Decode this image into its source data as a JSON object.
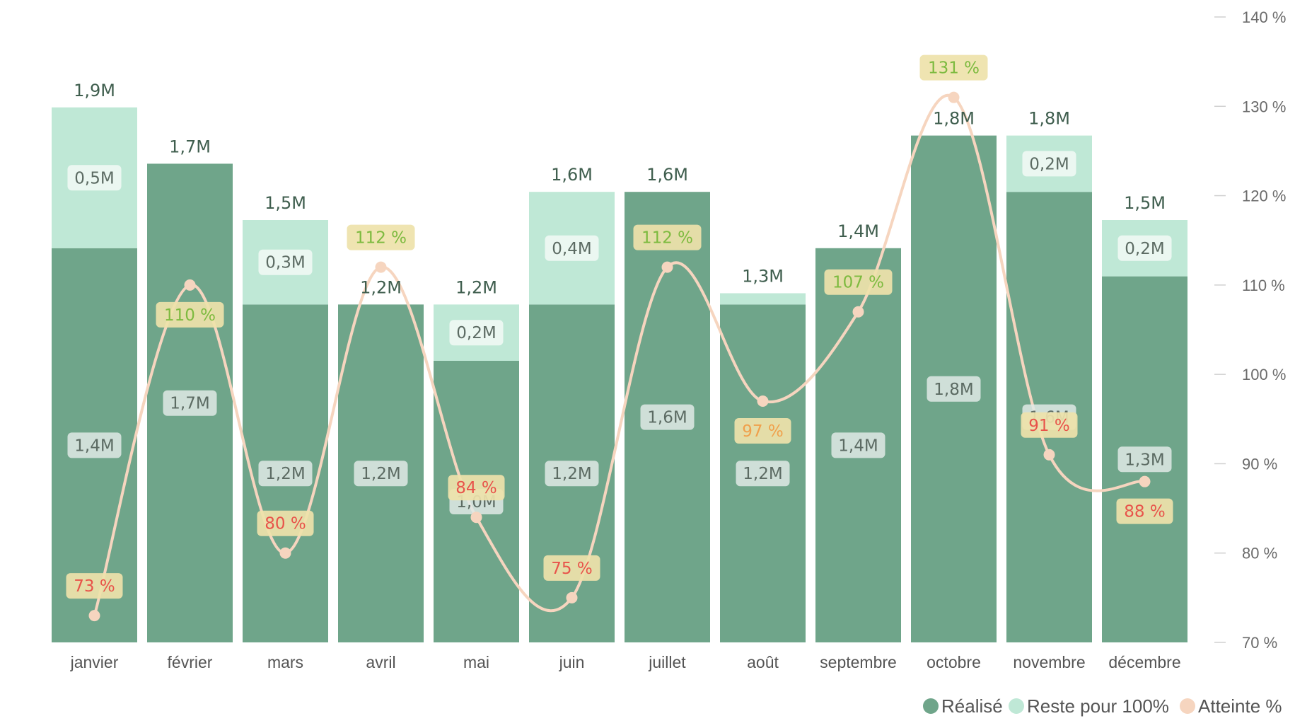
{
  "chart_data": {
    "type": "bar",
    "stacked": true,
    "categories": [
      "janvier",
      "février",
      "mars",
      "avril",
      "mai",
      "juin",
      "juillet",
      "août",
      "septembre",
      "octobre",
      "novembre",
      "décembre"
    ],
    "series": [
      {
        "name": "Réalisé",
        "kind": "bar",
        "color": "#6fa58a",
        "values": [
          1.4,
          1.7,
          1.2,
          1.2,
          1.0,
          1.2,
          1.6,
          1.2,
          1.4,
          1.8,
          1.6,
          1.3
        ],
        "labels": [
          "1,4M",
          "1,7M",
          "1,2M",
          "1,2M",
          "1,0M",
          "1,2M",
          "1,6M",
          "1,2M",
          "1,4M",
          "1,8M",
          "1,6M",
          "1,3M"
        ]
      },
      {
        "name": "Reste pour 100%",
        "kind": "bar",
        "color": "#bfe8d6",
        "values": [
          0.5,
          0,
          0.3,
          0,
          0.2,
          0.4,
          0,
          0.04,
          0,
          0,
          0.2,
          0.2
        ],
        "labels": [
          "0,5M",
          "",
          "0,3M",
          "",
          "0,2M",
          "0,4M",
          "",
          "",
          "",
          "",
          "0,2M",
          "0,2M"
        ]
      },
      {
        "name": "Atteinte %",
        "kind": "line",
        "axis": "right",
        "color": "#f6d5bf",
        "values": [
          73,
          110,
          80,
          112,
          84,
          75,
          112,
          97,
          107,
          131,
          91,
          88
        ],
        "labels": [
          "73 %",
          "110 %",
          "80 %",
          "112 %",
          "84 %",
          "75 %",
          "112 %",
          "97 %",
          "107 %",
          "131 %",
          "91 %",
          "88 %"
        ]
      }
    ],
    "totals": {
      "values": [
        1.9,
        1.7,
        1.5,
        1.2,
        1.2,
        1.6,
        1.6,
        1.3,
        1.4,
        1.8,
        1.8,
        1.5
      ],
      "labels": [
        "1,9M",
        "1,7M",
        "1,5M",
        "1,2M",
        "1,2M",
        "1,6M",
        "1,6M",
        "1,3M",
        "1,4M",
        "1,8M",
        "1,8M",
        "1,5M"
      ]
    },
    "y_right": {
      "range": [
        70,
        140
      ],
      "ticks": [
        70,
        80,
        90,
        100,
        110,
        120,
        130,
        140
      ],
      "tick_labels": [
        "70 %",
        "80 %",
        "90 %",
        "100 %",
        "110 %",
        "120 %",
        "130 %",
        "140 %"
      ]
    },
    "title": "",
    "xlabel": "",
    "ylabel": "",
    "grid": false,
    "legend": {
      "position": "bottom-right",
      "items": [
        {
          "name": "Réalisé",
          "color": "#6fa58a"
        },
        {
          "name": "Reste pour 100%",
          "color": "#bfe8d6"
        },
        {
          "name": "Atteinte %",
          "color": "#f6d5bf"
        }
      ]
    },
    "pct_label_colors": {
      "low": "#e8534a",
      "mid": "#f0a04b",
      "high": "#7dba3f"
    }
  }
}
